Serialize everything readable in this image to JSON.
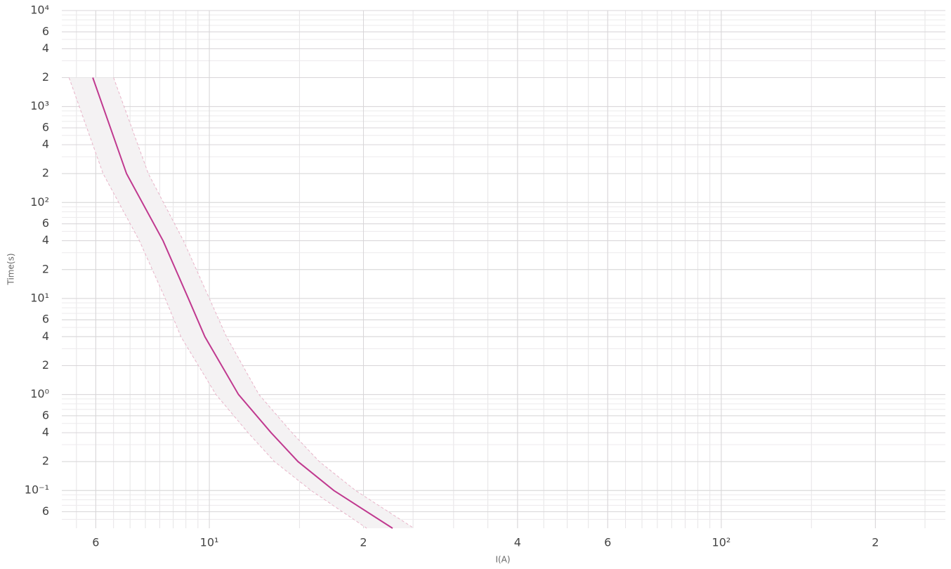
{
  "chart_data": {
    "type": "line",
    "x_label": "I(A)",
    "y_label": "Time(s)",
    "log_x": true,
    "log_y": true,
    "grid": true,
    "xlim": [
      5.15,
      274
    ],
    "ylim": [
      0.0404,
      10000
    ],
    "xticks": [
      6,
      {
        "value": 10,
        "label": "10¹"
      },
      {
        "value": 20,
        "label": "2"
      },
      {
        "value": 40,
        "label": "4"
      },
      {
        "value": 60,
        "label": "6"
      },
      {
        "value": 100,
        "label": "10²"
      },
      {
        "value": 200,
        "label": "2"
      }
    ],
    "yticks": [
      {
        "value": 10000,
        "label": "10⁴"
      },
      {
        "value": 6000,
        "label": "6"
      },
      {
        "value": 4000,
        "label": "4"
      },
      {
        "value": 2000,
        "label": "2"
      },
      {
        "value": 1000,
        "label": "10³"
      },
      {
        "value": 600,
        "label": "6"
      },
      {
        "value": 400,
        "label": "4"
      },
      {
        "value": 200,
        "label": "2"
      },
      {
        "value": 100,
        "label": "10²"
      },
      {
        "value": 60,
        "label": "6"
      },
      {
        "value": 40,
        "label": "4"
      },
      {
        "value": 20,
        "label": "2"
      },
      {
        "value": 10,
        "label": "10¹"
      },
      6,
      4,
      2,
      {
        "value": 1,
        "label": "10⁰"
      },
      {
        "value": 0.6,
        "label": "6"
      },
      {
        "value": 0.4,
        "label": "4"
      },
      {
        "value": 0.2,
        "label": "2"
      },
      {
        "value": 0.1,
        "label": "10⁻¹"
      },
      {
        "value": 0.06,
        "label": "6"
      }
    ],
    "band_color": "#f4f2f3",
    "series": [
      {
        "color": "#c0398f",
        "style": "solid",
        "x": [
          5.92,
          6.89,
          8.12,
          9.1,
          9.8,
          11.4,
          13.2,
          14.9,
          17.5,
          22.8
        ],
        "values": [
          2000,
          200,
          40,
          10,
          4,
          1,
          0.4,
          0.2,
          0.1,
          0.0404
        ]
      },
      {
        "color": "#e8b4c8",
        "style": "dashed",
        "x": [
          5.32,
          6.2,
          7.3,
          8.2,
          8.8,
          10.3,
          11.9,
          13.4,
          15.8,
          20.3
        ],
        "values": [
          2000,
          200,
          40,
          10,
          4,
          1,
          0.4,
          0.2,
          0.1,
          0.0404
        ]
      },
      {
        "color": "#e8b4c8",
        "style": "dashed",
        "x": [
          6.5,
          7.6,
          8.9,
          10.0,
          10.8,
          12.5,
          14.5,
          16.4,
          19.3,
          25.1
        ],
        "values": [
          2000,
          200,
          40,
          10,
          4,
          1,
          0.4,
          0.2,
          0.1,
          0.0404
        ]
      }
    ]
  }
}
